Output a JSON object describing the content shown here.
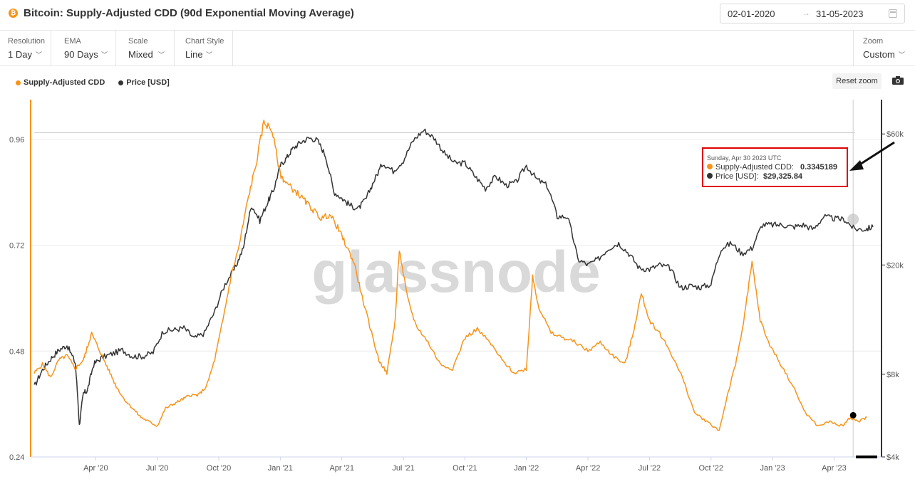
{
  "header": {
    "title": "Bitcoin: Supply-Adjusted CDD (90d Exponential Moving Average)",
    "date_start": "02-01-2020",
    "date_end": "31-05-2023",
    "date_arrow": "→"
  },
  "controls": [
    {
      "label": "Resolution",
      "value": "1 Day"
    },
    {
      "label": "EMA",
      "value": "90 Days"
    },
    {
      "label": "Scale",
      "value": "Mixed"
    },
    {
      "label": "Chart Style",
      "value": "Line"
    }
  ],
  "zoom": {
    "label": "Zoom",
    "value": "Custom"
  },
  "reset_zoom_label": "Reset zoom",
  "colors": {
    "cdd": "#f7931a",
    "price": "#333333",
    "tooltip_border": "#e00000"
  },
  "chart_data": {
    "type": "line",
    "watermark": "glassnode",
    "x_ticks": [
      "Apr '20",
      "Jul '20",
      "Oct '20",
      "Jan '21",
      "Apr '21",
      "Jul '21",
      "Oct '21",
      "Jan '22",
      "Apr '22",
      "Jul '22",
      "Oct '22",
      "Jan '23",
      "Apr '23"
    ],
    "left_axis": {
      "ticks": [
        "0.96",
        "0.72",
        "0.48",
        "0.24"
      ],
      "tick_values": [
        0.96,
        0.72,
        0.48,
        0.24
      ],
      "range": [
        0.24,
        1.05
      ]
    },
    "right_axis": {
      "ticks": [
        "$60k",
        "$20k",
        "$8k",
        "$4k"
      ],
      "tick_values": [
        60000,
        20000,
        8000,
        4000
      ],
      "scale": "log",
      "range": [
        4000,
        80000
      ]
    },
    "x_range_months": [
      0,
      41
    ],
    "series": [
      {
        "name": "Supply-Adjusted CDD",
        "axis": "left",
        "x_months": [
          0,
          0.4,
          0.8,
          1.2,
          1.6,
          2.0,
          2.4,
          2.6,
          2.8,
          3.2,
          3.6,
          4.0,
          4.4,
          4.8,
          5.2,
          5.6,
          6.0,
          6.4,
          6.8,
          7.2,
          7.6,
          8.0,
          8.4,
          8.8,
          9.2,
          9.6,
          10.0,
          10.4,
          10.8,
          11.2,
          11.6,
          12.0,
          12.3,
          12.8,
          13.2,
          13.6,
          14.0,
          14.4,
          14.8,
          15.2,
          15.6,
          16.0,
          16.4,
          16.8,
          17.2,
          17.6,
          17.8,
          18.2,
          18.6,
          19.2,
          19.8,
          20.4,
          21.0,
          21.6,
          22.2,
          22.8,
          23.4,
          24.0,
          24.3,
          24.6,
          25.2,
          25.8,
          26.4,
          27.0,
          27.6,
          28.2,
          28.8,
          29.2,
          29.6,
          30.0,
          30.5,
          31.0,
          31.6,
          32.2,
          32.8,
          33.4,
          33.8,
          34.2,
          34.6,
          35.0,
          35.4,
          35.8,
          36.4,
          37.0,
          37.6,
          38.2,
          38.8,
          39.4,
          39.8,
          40.2,
          40.6
        ],
        "values": [
          0.43,
          0.45,
          0.42,
          0.46,
          0.47,
          0.44,
          0.46,
          0.49,
          0.52,
          0.48,
          0.44,
          0.4,
          0.37,
          0.35,
          0.33,
          0.32,
          0.31,
          0.35,
          0.36,
          0.37,
          0.38,
          0.38,
          0.4,
          0.46,
          0.55,
          0.65,
          0.72,
          0.82,
          0.9,
          1.0,
          0.98,
          0.88,
          0.86,
          0.84,
          0.82,
          0.8,
          0.78,
          0.79,
          0.76,
          0.72,
          0.68,
          0.6,
          0.53,
          0.46,
          0.43,
          0.55,
          0.71,
          0.6,
          0.54,
          0.5,
          0.45,
          0.44,
          0.51,
          0.53,
          0.5,
          0.46,
          0.43,
          0.44,
          0.65,
          0.58,
          0.52,
          0.51,
          0.5,
          0.48,
          0.5,
          0.47,
          0.45,
          0.52,
          0.61,
          0.55,
          0.52,
          0.48,
          0.42,
          0.34,
          0.32,
          0.3,
          0.38,
          0.45,
          0.55,
          0.68,
          0.55,
          0.5,
          0.45,
          0.4,
          0.34,
          0.31,
          0.32,
          0.31,
          0.33,
          0.32,
          0.33
        ]
      },
      {
        "name": "Price [USD]",
        "axis": "right",
        "x_months": [
          0,
          0.4,
          0.8,
          1.2,
          1.6,
          2.0,
          2.2,
          2.4,
          2.6,
          2.9,
          3.3,
          3.8,
          4.3,
          4.8,
          5.3,
          5.8,
          6.3,
          6.8,
          7.3,
          7.8,
          8.3,
          8.8,
          9.3,
          9.8,
          10.2,
          10.6,
          11.0,
          11.4,
          11.7,
          12.0,
          12.3,
          12.6,
          13.0,
          13.4,
          13.8,
          14.2,
          14.6,
          15.0,
          15.4,
          15.8,
          16.2,
          16.6,
          17.0,
          17.5,
          18.0,
          18.5,
          19.0,
          19.5,
          20.0,
          20.5,
          21.0,
          21.5,
          22.0,
          22.5,
          23.0,
          23.5,
          24.0,
          24.5,
          25.0,
          25.5,
          26.0,
          26.5,
          27.0,
          27.5,
          28.0,
          28.5,
          29.0,
          29.5,
          30.0,
          30.5,
          31.0,
          31.5,
          32.0,
          32.5,
          33.0,
          33.5,
          34.0,
          34.5,
          35.0,
          35.5,
          36.0,
          36.5,
          37.0,
          37.5,
          38.0,
          38.5,
          39.0,
          39.5,
          40.0,
          40.5,
          40.9
        ],
        "values": [
          7200,
          8300,
          9100,
          9800,
          10200,
          8800,
          5200,
          6800,
          7000,
          8700,
          9200,
          9500,
          9800,
          9300,
          9300,
          9600,
          11500,
          11600,
          11800,
          10800,
          11300,
          13500,
          17000,
          19500,
          23000,
          33000,
          29000,
          34000,
          38000,
          46000,
          49000,
          53000,
          56000,
          58000,
          57000,
          50000,
          37000,
          35000,
          33000,
          32000,
          35000,
          41000,
          47000,
          44000,
          48000,
          57000,
          62000,
          58000,
          51000,
          47000,
          47000,
          42000,
          38000,
          42000,
          39000,
          40000,
          46000,
          41000,
          39000,
          30000,
          30000,
          21000,
          20000,
          21000,
          23000,
          24000,
          22000,
          19500,
          19300,
          20000,
          19500,
          16500,
          16800,
          16600,
          17000,
          23000,
          24000,
          22000,
          23000,
          28000,
          28000,
          28000,
          27500,
          28000,
          27000,
          30000,
          29500,
          29300,
          27000,
          27000,
          27500
        ]
      }
    ],
    "hover_point": {
      "x_month": 39.93,
      "cdd": 0.3345189,
      "price": 29325.84
    },
    "tooltip": {
      "date": "Sunday, Apr 30 2023 UTC",
      "cdd_label": "Supply-Adjusted CDD:",
      "cdd_value": "0.3345189",
      "price_label": "Price [USD]:",
      "price_value": "$29,325.84"
    }
  }
}
